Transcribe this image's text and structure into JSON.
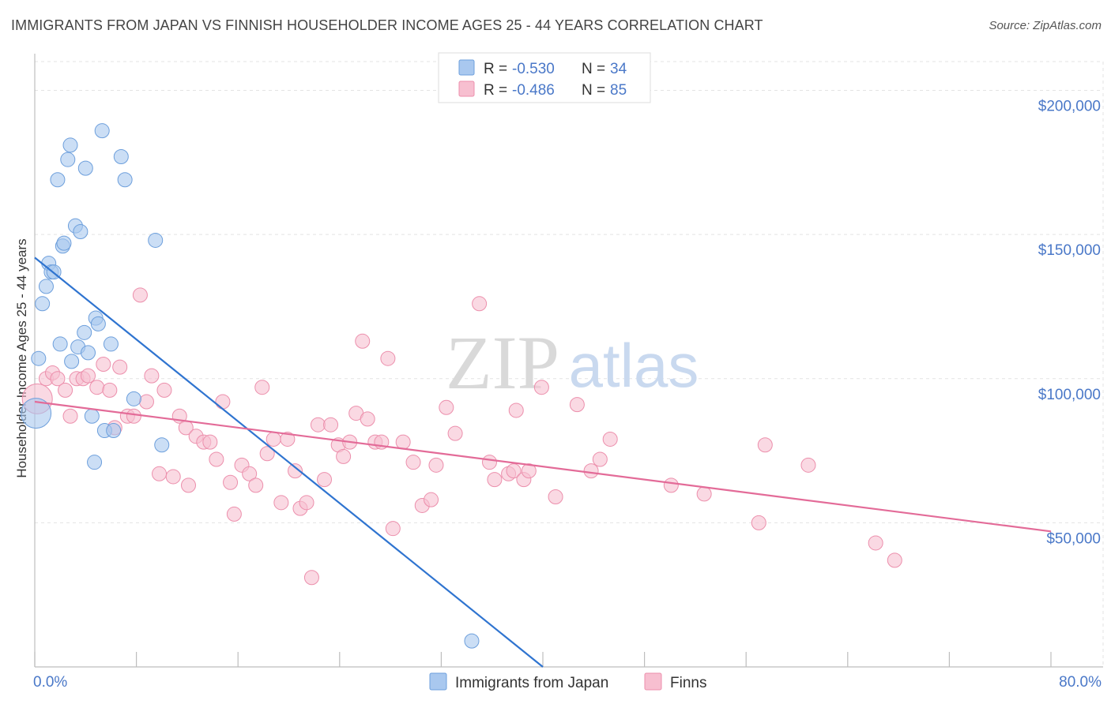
{
  "title": "IMMIGRANTS FROM JAPAN VS FINNISH HOUSEHOLDER INCOME AGES 25 - 44 YEARS CORRELATION CHART",
  "source": "Source: ZipAtlas.com",
  "watermark": {
    "zip": "ZIP",
    "atlas": "atlas"
  },
  "colors": {
    "blue_fill": "#a9c8ef",
    "blue_stroke": "#6d9fdc",
    "blue_line": "#2f74d0",
    "pink_fill": "#f7bfd0",
    "pink_stroke": "#ec8fac",
    "pink_line": "#e36b98",
    "value_text": "#4a78c8",
    "grid": "#e3e3e3",
    "axis": "#bdbdbd"
  },
  "legend": [
    {
      "r_label": "R =",
      "r_value": "-0.530",
      "n_label": "N =",
      "n_value": "34"
    },
    {
      "r_label": "R =",
      "r_value": "-0.486",
      "n_label": "N =",
      "n_value": "85"
    }
  ],
  "chart_data": {
    "type": "scatter",
    "xlabel": "",
    "ylabel": "Householder Income Ages 25 - 44 years",
    "xlim": [
      0,
      80
    ],
    "ylim": [
      0,
      210000
    ],
    "x_tick_labels": [
      {
        "value": 0,
        "label": "0.0%"
      },
      {
        "value": 80,
        "label": "80.0%"
      }
    ],
    "y_tick_labels": [
      {
        "value": 50000,
        "label": "$50,000"
      },
      {
        "value": 100000,
        "label": "$100,000"
      },
      {
        "value": 150000,
        "label": "$150,000"
      },
      {
        "value": 200000,
        "label": "$200,000"
      }
    ],
    "series": [
      {
        "name": "Immigrants from Japan",
        "color": "blue",
        "trend": {
          "x": [
            0.0,
            40.0
          ],
          "y": [
            142000,
            0
          ]
        },
        "points": [
          {
            "x": 0.1,
            "y": 88000,
            "big": true
          },
          {
            "x": 0.3,
            "y": 107000
          },
          {
            "x": 0.6,
            "y": 126000
          },
          {
            "x": 0.9,
            "y": 132000
          },
          {
            "x": 1.1,
            "y": 140000
          },
          {
            "x": 1.3,
            "y": 137000
          },
          {
            "x": 1.5,
            "y": 137000
          },
          {
            "x": 1.8,
            "y": 169000
          },
          {
            "x": 2.0,
            "y": 112000
          },
          {
            "x": 2.2,
            "y": 146000
          },
          {
            "x": 2.3,
            "y": 147000
          },
          {
            "x": 2.6,
            "y": 176000
          },
          {
            "x": 2.8,
            "y": 181000
          },
          {
            "x": 2.9,
            "y": 106000
          },
          {
            "x": 3.2,
            "y": 153000
          },
          {
            "x": 3.4,
            "y": 111000
          },
          {
            "x": 3.6,
            "y": 151000
          },
          {
            "x": 3.9,
            "y": 116000
          },
          {
            "x": 4.0,
            "y": 173000
          },
          {
            "x": 4.2,
            "y": 109000
          },
          {
            "x": 4.5,
            "y": 87000
          },
          {
            "x": 4.7,
            "y": 71000
          },
          {
            "x": 4.8,
            "y": 121000
          },
          {
            "x": 5.0,
            "y": 119000
          },
          {
            "x": 5.3,
            "y": 186000
          },
          {
            "x": 5.5,
            "y": 82000
          },
          {
            "x": 6.0,
            "y": 112000
          },
          {
            "x": 6.2,
            "y": 82000
          },
          {
            "x": 6.8,
            "y": 177000
          },
          {
            "x": 7.1,
            "y": 169000
          },
          {
            "x": 7.8,
            "y": 93000
          },
          {
            "x": 9.5,
            "y": 148000
          },
          {
            "x": 10.0,
            "y": 77000
          },
          {
            "x": 34.4,
            "y": 9000
          }
        ]
      },
      {
        "name": "Finns",
        "color": "pink",
        "trend": {
          "x": [
            0.0,
            80.0
          ],
          "y": [
            92000,
            47000
          ]
        },
        "points": [
          {
            "x": 0.2,
            "y": 93000,
            "big": true
          },
          {
            "x": 0.9,
            "y": 100000
          },
          {
            "x": 1.4,
            "y": 102000
          },
          {
            "x": 1.8,
            "y": 100000
          },
          {
            "x": 2.4,
            "y": 96000
          },
          {
            "x": 2.8,
            "y": 87000
          },
          {
            "x": 3.3,
            "y": 100000
          },
          {
            "x": 3.8,
            "y": 100000
          },
          {
            "x": 4.2,
            "y": 101000
          },
          {
            "x": 4.9,
            "y": 97000
          },
          {
            "x": 5.4,
            "y": 105000
          },
          {
            "x": 5.9,
            "y": 96000
          },
          {
            "x": 6.3,
            "y": 83000
          },
          {
            "x": 6.7,
            "y": 104000
          },
          {
            "x": 7.3,
            "y": 87000
          },
          {
            "x": 7.8,
            "y": 87000
          },
          {
            "x": 8.3,
            "y": 129000
          },
          {
            "x": 8.8,
            "y": 92000
          },
          {
            "x": 9.2,
            "y": 101000
          },
          {
            "x": 9.8,
            "y": 67000
          },
          {
            "x": 10.2,
            "y": 96000
          },
          {
            "x": 10.9,
            "y": 66000
          },
          {
            "x": 11.4,
            "y": 87000
          },
          {
            "x": 11.9,
            "y": 83000
          },
          {
            "x": 12.1,
            "y": 63000
          },
          {
            "x": 12.7,
            "y": 80000
          },
          {
            "x": 13.3,
            "y": 78000
          },
          {
            "x": 13.8,
            "y": 78000
          },
          {
            "x": 14.3,
            "y": 72000
          },
          {
            "x": 14.8,
            "y": 92000
          },
          {
            "x": 15.4,
            "y": 64000
          },
          {
            "x": 15.7,
            "y": 53000
          },
          {
            "x": 16.3,
            "y": 70000
          },
          {
            "x": 16.9,
            "y": 67000
          },
          {
            "x": 17.4,
            "y": 63000
          },
          {
            "x": 17.9,
            "y": 97000
          },
          {
            "x": 18.3,
            "y": 74000
          },
          {
            "x": 18.8,
            "y": 79000
          },
          {
            "x": 19.4,
            "y": 57000
          },
          {
            "x": 19.9,
            "y": 79000
          },
          {
            "x": 20.5,
            "y": 68000
          },
          {
            "x": 20.9,
            "y": 55000
          },
          {
            "x": 21.4,
            "y": 57000
          },
          {
            "x": 21.8,
            "y": 31000
          },
          {
            "x": 22.3,
            "y": 84000
          },
          {
            "x": 22.8,
            "y": 65000
          },
          {
            "x": 23.3,
            "y": 84000
          },
          {
            "x": 23.9,
            "y": 77000
          },
          {
            "x": 24.3,
            "y": 73000
          },
          {
            "x": 24.8,
            "y": 78000
          },
          {
            "x": 25.3,
            "y": 88000
          },
          {
            "x": 25.8,
            "y": 113000
          },
          {
            "x": 26.2,
            "y": 86000
          },
          {
            "x": 26.8,
            "y": 78000
          },
          {
            "x": 27.3,
            "y": 78000
          },
          {
            "x": 27.8,
            "y": 107000
          },
          {
            "x": 28.2,
            "y": 48000
          },
          {
            "x": 29.0,
            "y": 78000
          },
          {
            "x": 29.8,
            "y": 71000
          },
          {
            "x": 30.5,
            "y": 56000
          },
          {
            "x": 31.2,
            "y": 58000
          },
          {
            "x": 31.6,
            "y": 70000
          },
          {
            "x": 32.4,
            "y": 90000
          },
          {
            "x": 33.1,
            "y": 81000
          },
          {
            "x": 35.0,
            "y": 126000
          },
          {
            "x": 35.8,
            "y": 71000
          },
          {
            "x": 36.2,
            "y": 65000
          },
          {
            "x": 37.3,
            "y": 67000
          },
          {
            "x": 37.7,
            "y": 68000
          },
          {
            "x": 37.9,
            "y": 89000
          },
          {
            "x": 38.5,
            "y": 65000
          },
          {
            "x": 38.9,
            "y": 68000
          },
          {
            "x": 39.9,
            "y": 97000
          },
          {
            "x": 41.0,
            "y": 59000
          },
          {
            "x": 42.7,
            "y": 91000
          },
          {
            "x": 43.8,
            "y": 68000
          },
          {
            "x": 44.5,
            "y": 72000
          },
          {
            "x": 45.3,
            "y": 79000
          },
          {
            "x": 50.1,
            "y": 63000
          },
          {
            "x": 52.7,
            "y": 60000
          },
          {
            "x": 57.0,
            "y": 50000
          },
          {
            "x": 57.5,
            "y": 77000
          },
          {
            "x": 60.9,
            "y": 70000
          },
          {
            "x": 66.2,
            "y": 43000
          },
          {
            "x": 67.7,
            "y": 37000
          }
        ]
      }
    ],
    "legend_position": "bottom-center"
  }
}
